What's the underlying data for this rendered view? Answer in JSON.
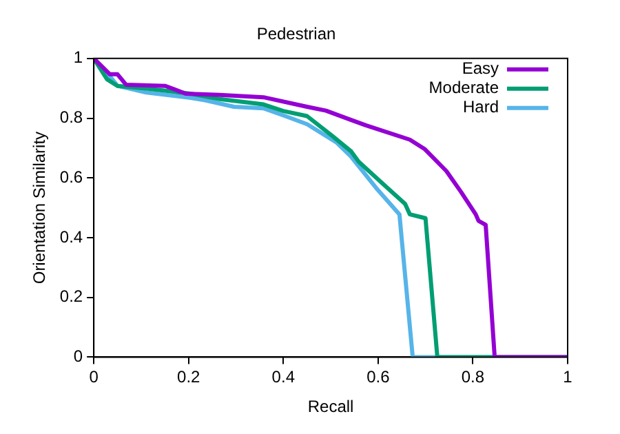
{
  "chart_data": {
    "type": "line",
    "title": "Pedestrian",
    "xlabel": "Recall",
    "ylabel": "Orientation Similarity",
    "xlim": [
      0,
      1
    ],
    "ylim": [
      0,
      1
    ],
    "xticks": [
      0,
      0.2,
      0.4,
      0.6,
      0.8,
      1
    ],
    "yticks": [
      0,
      0.2,
      0.4,
      0.6,
      0.8,
      1
    ],
    "grid": false,
    "legend": "top right",
    "marker": "none",
    "line_style": "solid",
    "series": [
      {
        "name": "Easy",
        "color": "#9400d3",
        "x": [
          0,
          0.034,
          0.05,
          0.068,
          0.151,
          0.194,
          0.265,
          0.358,
          0.45,
          0.49,
          0.574,
          0.667,
          0.698,
          0.744,
          0.775,
          0.806,
          0.812,
          0.827,
          0.846,
          1
        ],
        "values": [
          1,
          0.947,
          0.947,
          0.912,
          0.908,
          0.882,
          0.878,
          0.87,
          0.838,
          0.825,
          0.776,
          0.728,
          0.697,
          0.623,
          0.553,
          0.478,
          0.456,
          0.443,
          0,
          0
        ]
      },
      {
        "name": "Moderate",
        "color": "#009e73",
        "x": [
          0,
          0.028,
          0.05,
          0.111,
          0.204,
          0.265,
          0.358,
          0.4,
          0.45,
          0.503,
          0.543,
          0.559,
          0.62,
          0.657,
          0.667,
          0.7,
          0.725,
          1
        ],
        "values": [
          1,
          0.93,
          0.908,
          0.899,
          0.882,
          0.864,
          0.846,
          0.824,
          0.807,
          0.741,
          0.689,
          0.654,
          0.566,
          0.513,
          0.478,
          0.465,
          0,
          0
        ]
      },
      {
        "name": "Hard",
        "color": "#56b4e9",
        "x": [
          0,
          0.034,
          0.05,
          0.111,
          0.204,
          0.235,
          0.296,
          0.358,
          0.404,
          0.45,
          0.512,
          0.543,
          0.596,
          0.645,
          0.673,
          1
        ],
        "values": [
          1,
          0.94,
          0.908,
          0.886,
          0.868,
          0.86,
          0.838,
          0.833,
          0.807,
          0.78,
          0.719,
          0.671,
          0.566,
          0.478,
          0,
          0
        ]
      }
    ]
  }
}
